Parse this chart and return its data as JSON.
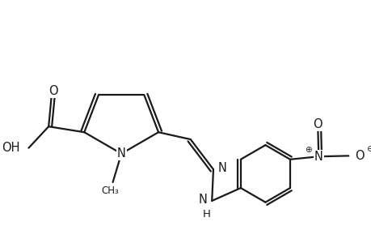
{
  "bg_color": "#ffffff",
  "line_color": "#1a1a1a",
  "line_width": 1.6,
  "font_size": 10.5,
  "figsize": [
    4.6,
    3.0
  ],
  "dpi": 100,
  "xlim": [
    -1.5,
    3.2
  ],
  "ylim": [
    -0.9,
    1.8
  ]
}
